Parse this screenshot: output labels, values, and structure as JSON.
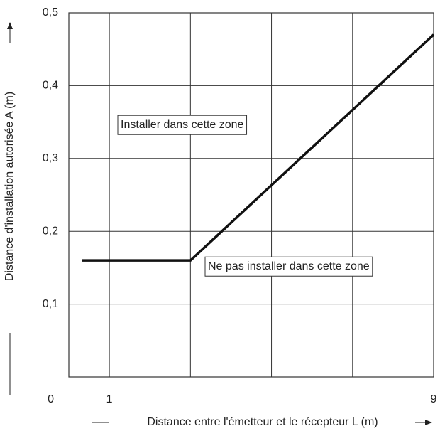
{
  "chart_data": {
    "type": "line",
    "xlabel": "Distance entre l'émetteur et le récepteur L (m)",
    "ylabel": "Distance d'installation autorisée A (m)",
    "x": [
      0.33,
      3,
      9
    ],
    "series": [
      {
        "color": "#111111",
        "values": [
          0.16,
          0.16,
          0.47
        ]
      }
    ],
    "xlim": [
      0,
      9
    ],
    "xticks": [
      1,
      9
    ],
    "x_gridlines": [
      1,
      3,
      5,
      7,
      9
    ],
    "ylim": [
      0,
      0.5
    ],
    "yticks": [
      0,
      {
        "value": 0.1,
        "label": "0,1"
      },
      {
        "value": 0.2,
        "label": "0,2"
      },
      {
        "value": 0.3,
        "label": "0,3"
      },
      {
        "value": 0.4,
        "label": "0,4"
      },
      {
        "value": 0.5,
        "label": "0,5"
      }
    ],
    "grid": true,
    "annotations": [
      "Installer dans cette zone",
      "Ne pas installer dans cette zone"
    ]
  }
}
